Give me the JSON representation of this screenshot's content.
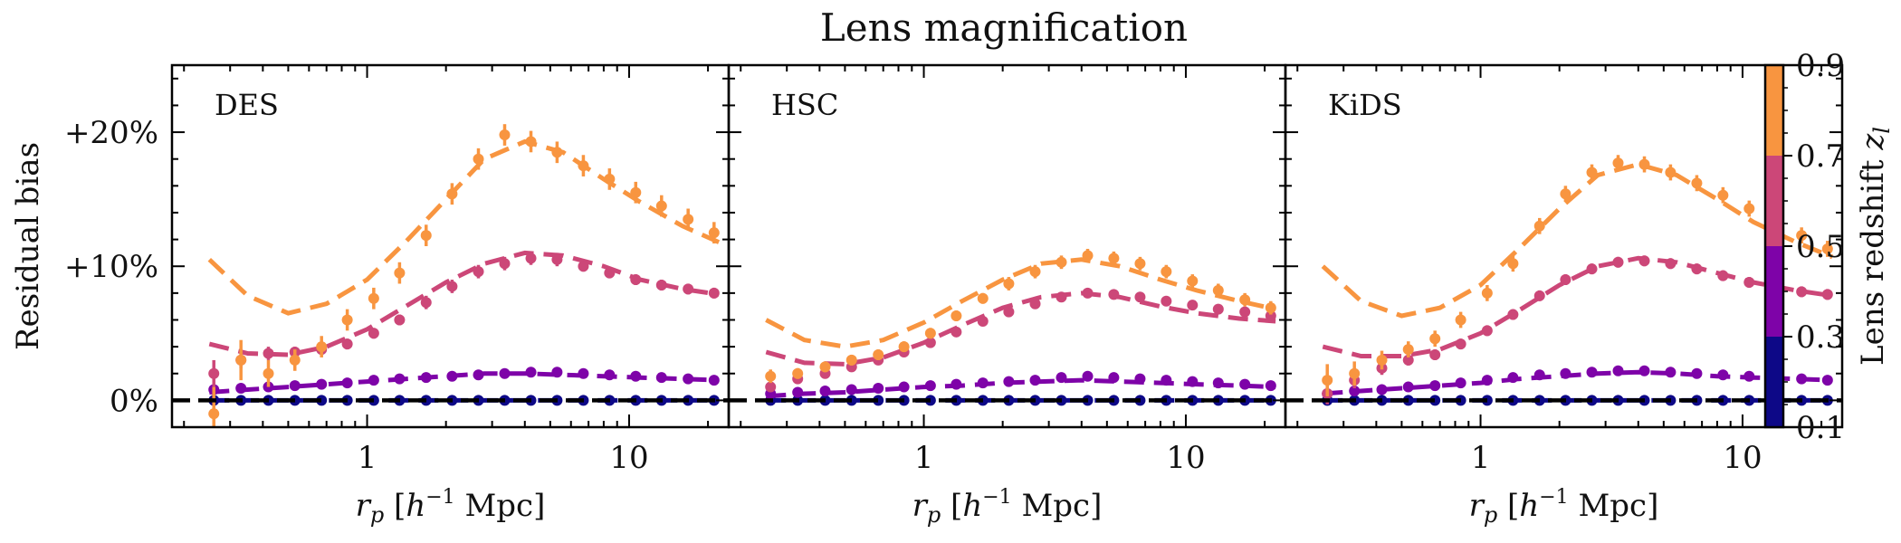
{
  "chart_data": {
    "type": "scatter",
    "title": "Lens magnification",
    "ylabel": "Residual bias",
    "xlabel": "r_p [h^-1 Mpc]",
    "x_scale": "log",
    "xlim": [
      0.18,
      24
    ],
    "ylim": [
      -2,
      25
    ],
    "yticks": [
      {
        "value": 0,
        "label": "0%"
      },
      {
        "value": 10,
        "label": "+10%"
      },
      {
        "value": 20,
        "label": "+20%"
      }
    ],
    "xticks": [
      {
        "value": 1,
        "label": "1"
      },
      {
        "value": 10,
        "label": "10"
      }
    ],
    "colorbar": {
      "label": "Lens redshift z_l",
      "ticks": [
        "0.1",
        "0.3",
        "0.5",
        "0.7",
        "0.9"
      ],
      "bins": [
        {
          "range": [
            0.1,
            0.3
          ],
          "color": "#0d0887"
        },
        {
          "range": [
            0.3,
            0.5
          ],
          "color": "#7e03a8"
        },
        {
          "range": [
            0.5,
            0.7
          ],
          "color": "#cc4778"
        },
        {
          "range": [
            0.7,
            0.9
          ],
          "color": "#f89540"
        }
      ]
    },
    "reference_line": {
      "y": 0,
      "style": "dashed",
      "color": "#000000"
    },
    "x_points": [
      0.26,
      0.33,
      0.42,
      0.53,
      0.67,
      0.84,
      1.06,
      1.33,
      1.68,
      2.11,
      2.66,
      3.35,
      4.22,
      5.31,
      6.69,
      8.42,
      10.6,
      13.3,
      16.8,
      21.1
    ],
    "x_model": [
      0.25,
      0.35,
      0.5,
      0.7,
      1.0,
      1.4,
      2.0,
      2.8,
      4.0,
      5.6,
      8.0,
      11.0,
      16.0,
      22.0
    ],
    "panels": [
      {
        "name": "DES",
        "series": [
          {
            "color": "#0d0887",
            "points": [
              0.0,
              0.0,
              0.0,
              0.0,
              0.0,
              0.0,
              0.0,
              0.0,
              0.0,
              0.0,
              0.0,
              0.0,
              0.0,
              0.0,
              0.0,
              0.0,
              0.0,
              0.0,
              0.0,
              0.0
            ],
            "errors": [
              0.3,
              0.2,
              0.2,
              0.1,
              0.1,
              0.1,
              0.1,
              0.1,
              0.1,
              0.1,
              0.1,
              0.1,
              0.1,
              0.1,
              0.1,
              0.1,
              0.1,
              0.1,
              0.1,
              0.1
            ],
            "model": [
              0.0,
              0.0,
              0.0,
              0.0,
              0.0,
              0.0,
              0.0,
              0.0,
              0.0,
              0.0,
              0.0,
              0.0,
              0.0,
              0.0
            ]
          },
          {
            "color": "#7e03a8",
            "points": [
              0.8,
              0.9,
              1.0,
              1.1,
              1.2,
              1.3,
              1.5,
              1.6,
              1.7,
              1.8,
              1.9,
              2.0,
              2.1,
              2.1,
              2.0,
              1.9,
              1.8,
              1.7,
              1.6,
              1.5
            ],
            "errors": [
              0.4,
              0.3,
              0.2,
              0.2,
              0.2,
              0.2,
              0.2,
              0.2,
              0.2,
              0.2,
              0.2,
              0.2,
              0.2,
              0.2,
              0.2,
              0.2,
              0.2,
              0.2,
              0.2,
              0.2
            ],
            "model": [
              0.6,
              0.8,
              1.0,
              1.2,
              1.4,
              1.6,
              1.8,
              2.0,
              2.0,
              1.9,
              1.8,
              1.7,
              1.6,
              1.5
            ]
          },
          {
            "color": "#cc4778",
            "points": [
              2.0,
              3.0,
              3.5,
              3.6,
              3.8,
              4.2,
              5.0,
              6.0,
              7.3,
              8.5,
              9.6,
              10.2,
              10.6,
              10.5,
              10.0,
              9.5,
              9.0,
              8.6,
              8.3,
              8.0
            ],
            "errors": [
              1.0,
              0.6,
              0.5,
              0.4,
              0.4,
              0.4,
              0.4,
              0.4,
              0.5,
              0.5,
              0.5,
              0.5,
              0.5,
              0.5,
              0.4,
              0.4,
              0.4,
              0.4,
              0.4,
              0.4
            ],
            "model": [
              4.2,
              3.5,
              3.4,
              4.0,
              5.3,
              7.0,
              8.8,
              10.2,
              11.0,
              10.8,
              10.0,
              9.0,
              8.3,
              7.9
            ]
          },
          {
            "color": "#f89540",
            "points": [
              -1.0,
              3.0,
              2.0,
              3.0,
              4.0,
              6.0,
              7.6,
              9.5,
              12.3,
              15.4,
              18.0,
              19.8,
              19.3,
              18.5,
              17.5,
              16.5,
              15.5,
              14.5,
              13.5,
              12.5
            ],
            "errors": [
              2.0,
              1.5,
              1.0,
              0.8,
              0.8,
              0.8,
              0.8,
              0.8,
              0.8,
              0.8,
              0.8,
              0.8,
              0.8,
              0.8,
              0.8,
              0.8,
              0.8,
              0.8,
              0.8,
              0.8
            ],
            "model": [
              10.5,
              7.8,
              6.5,
              7.2,
              9.0,
              11.8,
              15.0,
              18.0,
              19.3,
              18.5,
              16.5,
              14.8,
              13.0,
              11.8
            ]
          }
        ]
      },
      {
        "name": "HSC",
        "series": [
          {
            "color": "#0d0887",
            "points": [
              0.0,
              0.0,
              0.0,
              0.0,
              0.0,
              0.0,
              0.0,
              0.0,
              0.0,
              0.0,
              0.0,
              0.0,
              0.0,
              0.0,
              0.0,
              0.0,
              0.0,
              0.0,
              0.0,
              0.0
            ],
            "errors": [
              0.2,
              0.2,
              0.1,
              0.1,
              0.1,
              0.1,
              0.1,
              0.1,
              0.1,
              0.1,
              0.1,
              0.1,
              0.1,
              0.1,
              0.1,
              0.1,
              0.1,
              0.1,
              0.1,
              0.1
            ],
            "model": [
              0.0,
              0.0,
              0.0,
              0.0,
              0.0,
              0.0,
              0.0,
              0.0,
              0.0,
              0.0,
              0.0,
              0.0,
              0.0,
              0.0
            ]
          },
          {
            "color": "#7e03a8",
            "points": [
              0.5,
              0.6,
              0.7,
              0.8,
              0.9,
              1.0,
              1.1,
              1.2,
              1.3,
              1.4,
              1.5,
              1.7,
              1.8,
              1.7,
              1.6,
              1.5,
              1.4,
              1.3,
              1.2,
              1.1
            ],
            "errors": [
              0.2,
              0.2,
              0.2,
              0.2,
              0.2,
              0.2,
              0.2,
              0.2,
              0.2,
              0.2,
              0.2,
              0.2,
              0.2,
              0.2,
              0.2,
              0.2,
              0.2,
              0.2,
              0.2,
              0.2
            ],
            "model": [
              0.3,
              0.5,
              0.6,
              0.8,
              1.0,
              1.1,
              1.3,
              1.4,
              1.5,
              1.4,
              1.3,
              1.2,
              1.1,
              1.0
            ]
          },
          {
            "color": "#cc4778",
            "points": [
              1.0,
              1.6,
              2.0,
              2.5,
              3.0,
              3.6,
              4.3,
              5.1,
              5.9,
              6.6,
              7.2,
              7.7,
              8.0,
              7.9,
              7.7,
              7.4,
              7.1,
              6.8,
              6.6,
              6.3
            ],
            "errors": [
              0.3,
              0.3,
              0.3,
              0.3,
              0.3,
              0.3,
              0.3,
              0.3,
              0.3,
              0.3,
              0.3,
              0.3,
              0.3,
              0.3,
              0.3,
              0.3,
              0.3,
              0.3,
              0.3,
              0.3
            ],
            "model": [
              3.6,
              2.8,
              2.7,
              3.2,
              4.3,
              5.6,
              6.9,
              7.7,
              8.0,
              7.7,
              7.0,
              6.5,
              6.1,
              5.9
            ]
          },
          {
            "color": "#f89540",
            "points": [
              1.8,
              2.0,
              2.5,
              3.0,
              3.4,
              4.0,
              5.0,
              6.3,
              7.6,
              8.7,
              9.6,
              10.3,
              10.8,
              10.6,
              10.2,
              9.6,
              8.9,
              8.2,
              7.5,
              6.9
            ],
            "errors": [
              0.5,
              0.4,
              0.4,
              0.4,
              0.4,
              0.4,
              0.4,
              0.4,
              0.4,
              0.5,
              0.5,
              0.5,
              0.5,
              0.5,
              0.5,
              0.5,
              0.5,
              0.5,
              0.5,
              0.5
            ],
            "model": [
              6.0,
              4.5,
              4.0,
              4.5,
              5.8,
              7.4,
              9.0,
              10.2,
              10.5,
              10.0,
              9.0,
              8.2,
              7.4,
              6.8
            ]
          }
        ]
      },
      {
        "name": "KiDS",
        "series": [
          {
            "color": "#0d0887",
            "points": [
              0.0,
              0.0,
              0.0,
              0.0,
              0.0,
              0.0,
              0.0,
              0.0,
              0.0,
              0.0,
              0.0,
              0.0,
              0.0,
              0.0,
              0.0,
              0.0,
              0.0,
              0.0,
              0.0,
              0.0
            ],
            "errors": [
              0.3,
              0.2,
              0.2,
              0.1,
              0.1,
              0.1,
              0.1,
              0.1,
              0.1,
              0.1,
              0.1,
              0.1,
              0.1,
              0.1,
              0.1,
              0.1,
              0.1,
              0.1,
              0.1,
              0.1
            ],
            "model": [
              0.0,
              0.0,
              0.0,
              0.0,
              0.0,
              0.0,
              0.0,
              0.0,
              0.0,
              0.0,
              0.0,
              0.0,
              0.0,
              0.0
            ]
          },
          {
            "color": "#7e03a8",
            "points": [
              0.5,
              0.7,
              0.8,
              1.0,
              1.1,
              1.3,
              1.5,
              1.7,
              1.9,
              2.0,
              2.1,
              2.2,
              2.2,
              2.1,
              2.0,
              1.9,
              1.8,
              1.7,
              1.6,
              1.5
            ],
            "errors": [
              0.4,
              0.3,
              0.2,
              0.2,
              0.2,
              0.2,
              0.2,
              0.2,
              0.2,
              0.2,
              0.2,
              0.2,
              0.2,
              0.2,
              0.2,
              0.2,
              0.2,
              0.2,
              0.2,
              0.2
            ],
            "model": [
              0.5,
              0.7,
              0.9,
              1.1,
              1.3,
              1.6,
              1.8,
              2.0,
              2.1,
              2.0,
              1.8,
              1.7,
              1.6,
              1.5
            ]
          },
          {
            "color": "#cc4778",
            "points": [
              0.5,
              1.5,
              2.4,
              3.0,
              3.4,
              4.2,
              5.2,
              6.4,
              7.8,
              9.0,
              9.8,
              10.3,
              10.4,
              10.2,
              9.8,
              9.3,
              8.8,
              8.4,
              8.1,
              7.9
            ],
            "errors": [
              0.8,
              0.6,
              0.5,
              0.4,
              0.4,
              0.4,
              0.4,
              0.4,
              0.4,
              0.4,
              0.4,
              0.4,
              0.4,
              0.4,
              0.4,
              0.4,
              0.4,
              0.4,
              0.4,
              0.4
            ],
            "model": [
              4.0,
              3.3,
              3.3,
              3.8,
              5.0,
              6.7,
              8.6,
              10.0,
              10.6,
              10.3,
              9.5,
              8.8,
              8.2,
              7.8
            ]
          },
          {
            "color": "#f89540",
            "points": [
              1.5,
              2.0,
              3.0,
              3.8,
              4.6,
              6.0,
              8.0,
              10.2,
              13.0,
              15.4,
              17.0,
              17.7,
              17.6,
              17.0,
              16.2,
              15.3,
              14.3,
              13.3,
              12.3,
              11.3
            ],
            "errors": [
              1.2,
              0.9,
              0.7,
              0.6,
              0.6,
              0.6,
              0.6,
              0.6,
              0.6,
              0.6,
              0.6,
              0.6,
              0.6,
              0.6,
              0.6,
              0.6,
              0.6,
              0.6,
              0.6,
              0.6
            ],
            "model": [
              10.0,
              7.4,
              6.3,
              6.9,
              8.6,
              11.3,
              14.3,
              16.8,
              17.6,
              16.8,
              15.0,
              13.3,
              11.8,
              10.7
            ]
          }
        ]
      }
    ]
  }
}
